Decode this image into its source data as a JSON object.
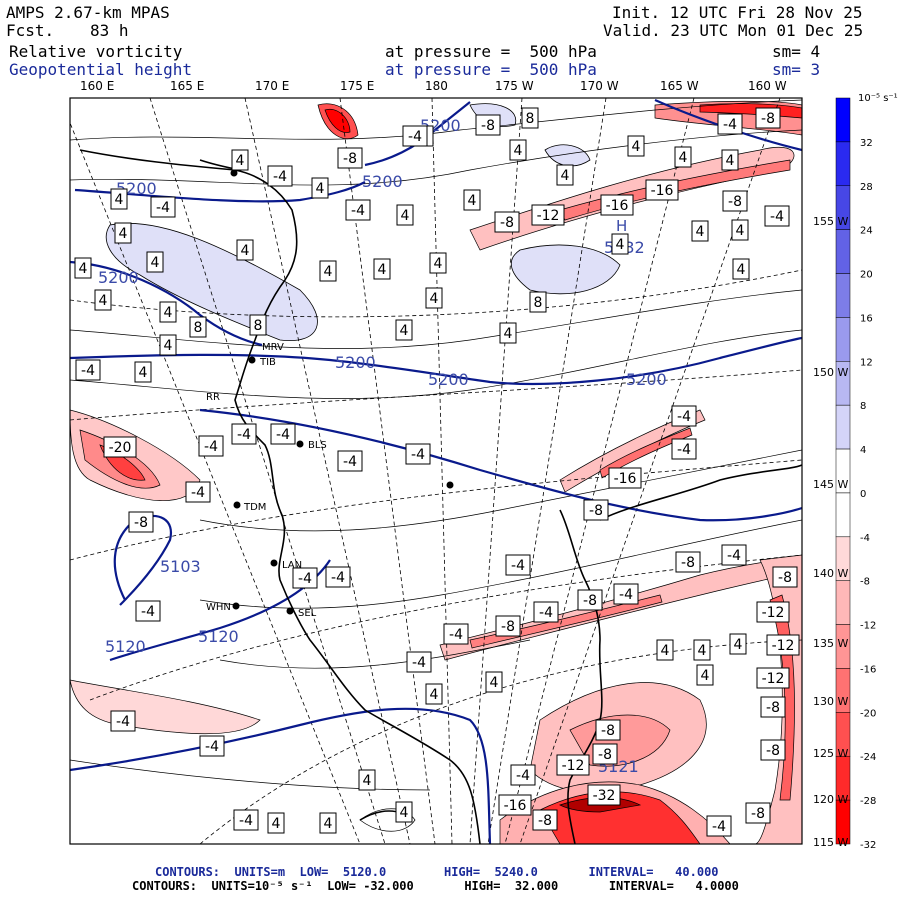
{
  "header": {
    "model": "AMPS 2.67-km MPAS",
    "fcst_label": "Fcst.",
    "fcst_value": "83 h",
    "init": "Init. 12 UTC Fri 28 Nov 25",
    "valid": "Valid. 23 UTC Mon 01 Dec 25",
    "field1": "Relative vorticity",
    "field1_level": "at pressure =  500 hPa",
    "field1_sm": "sm= 4",
    "field2": "Geopotential height",
    "field2_level": "at pressure =  500 hPa",
    "field2_sm": "sm= 3"
  },
  "longitude_labels": [
    "160 E",
    "165 E",
    "170 E",
    "175 E",
    "180",
    "175 W",
    "170 W",
    "165 W",
    "160 W"
  ],
  "latitude_labels": [
    "155 W",
    "150 W",
    "145 W",
    "140 W",
    "135 W",
    "130 W",
    "125 W",
    "120 W",
    "115 W"
  ],
  "colorbar": {
    "unit": "10⁻⁵ s⁻¹",
    "labels": [
      "32",
      "28",
      "24",
      "20",
      "16",
      "12",
      "8",
      "4",
      "0",
      "-4",
      "-8",
      "-12",
      "-16",
      "-20",
      "-24",
      "-28",
      "-32"
    ],
    "colors": [
      "#0000ff",
      "#2a2af0",
      "#4747e6",
      "#6262e6",
      "#7d7de8",
      "#9a9aee",
      "#b8b8f2",
      "#d4d4f8",
      "#ffffff",
      "#ffffff",
      "#ffd9d9",
      "#ffb8b8",
      "#ff9595",
      "#ff7272",
      "#ff5050",
      "#ff2a2a",
      "#ff0000"
    ]
  },
  "stations": [
    "BLS",
    "TDM",
    "LAN",
    "SEL",
    "WHN",
    "TIB",
    "MRV",
    "RR"
  ],
  "height_labels": [
    "5200",
    "5200",
    "5200",
    "5200",
    "5200",
    "5200",
    "5200",
    "5232",
    "5103",
    "5120",
    "5120",
    "5121"
  ],
  "vort_labels": [
    "4",
    "-4",
    "8",
    "-8",
    "-12",
    "-16",
    "-20",
    "-32"
  ],
  "footer": {
    "line1_label": "CONTOURS:  UNITS=m  LOW=  5120.0        HIGH=  5240.0       INTERVAL=   40.000",
    "line2_label": "CONTOURS:  UNITS=10⁻⁵ s⁻¹  LOW= -32.000       HIGH=  32.000       INTERVAL=   4.0000"
  },
  "colors": {
    "height_contour": "#0a1a8c",
    "header_blue": "#1a2a9a",
    "frame": "#000000"
  }
}
